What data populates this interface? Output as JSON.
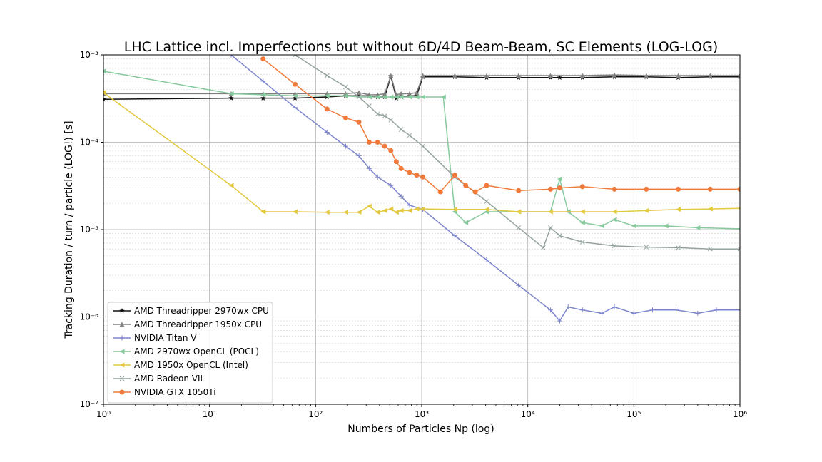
{
  "chart_data": {
    "type": "line",
    "title": "LHC Lattice incl. Imperfections but without 6D/4D Beam-Beam, SC Elements (LOG-LOG)",
    "xlabel": "Numbers of Particles Np (log)",
    "ylabel": "Tracking Duration / turn / particle (LOG!) [s]",
    "xscale": "log",
    "yscale": "log",
    "xlim": [
      1,
      1000000
    ],
    "ylim": [
      1e-07,
      0.001
    ],
    "x_ticks": [
      {
        "value": 1,
        "label": "10⁰"
      },
      {
        "value": 10,
        "label": "10¹"
      },
      {
        "value": 100,
        "label": "10²"
      },
      {
        "value": 1000,
        "label": "10³"
      },
      {
        "value": 10000,
        "label": "10⁴"
      },
      {
        "value": 100000,
        "label": "10⁵"
      },
      {
        "value": 1000000,
        "label": "10⁶"
      }
    ],
    "y_ticks": [
      {
        "value": 1e-07,
        "label": "10⁻⁷"
      },
      {
        "value": 1e-06,
        "label": "10⁻⁶"
      },
      {
        "value": 1e-05,
        "label": "10⁻⁵"
      },
      {
        "value": 0.0001,
        "label": "10⁻⁴"
      },
      {
        "value": 0.001,
        "label": "10⁻³"
      }
    ],
    "grid": true,
    "legend_position": "lower-left",
    "series": [
      {
        "name": "AMD Threadripper 2970wx CPU",
        "color": "#111111",
        "marker": "star",
        "x": [
          1,
          16,
          32,
          64,
          128,
          192,
          256,
          320,
          384,
          448,
          512,
          576,
          640,
          768,
          896,
          1024,
          2048,
          4096,
          8192,
          16384,
          20000,
          32768,
          65536,
          131072,
          262144,
          524288,
          1000000
        ],
        "y": [
          0.00031,
          0.00032,
          0.00032,
          0.00032,
          0.00033,
          0.00034,
          0.00034,
          0.00034,
          0.00033,
          0.00033,
          0.00057,
          0.00032,
          0.00033,
          0.00034,
          0.00034,
          0.00056,
          0.00056,
          0.00055,
          0.00055,
          0.00055,
          0.00055,
          0.00055,
          0.00056,
          0.00056,
          0.00055,
          0.00056,
          0.00056
        ]
      },
      {
        "name": "AMD Threadripper 1950x CPU",
        "color": "#808080",
        "marker": "triangle-up",
        "x": [
          1,
          16,
          32,
          64,
          128,
          192,
          256,
          320,
          384,
          448,
          512,
          576,
          640,
          768,
          896,
          1024,
          2048,
          4096,
          8192,
          16384,
          32768,
          65536,
          131072,
          262144,
          524288,
          1000000
        ],
        "y": [
          0.00036,
          0.00036,
          0.00036,
          0.00036,
          0.00036,
          0.00036,
          0.00037,
          0.00035,
          0.00035,
          0.00036,
          0.00058,
          0.00035,
          0.00036,
          0.00036,
          0.00037,
          0.00058,
          0.00058,
          0.00058,
          0.00058,
          0.00058,
          0.00058,
          0.00059,
          0.00058,
          0.00058,
          0.00058,
          0.00058
        ]
      },
      {
        "name": "NVIDIA Titan V",
        "color": "#7d85cc",
        "marker": "plus",
        "x": [
          16,
          32,
          64,
          128,
          192,
          256,
          320,
          384,
          512,
          640,
          768,
          1024,
          2048,
          4096,
          8192,
          16384,
          20000,
          24000,
          32768,
          50000,
          65536,
          100000,
          150000,
          250000,
          400000,
          600000,
          1000000
        ],
        "y": [
          0.001,
          0.0005,
          0.00025,
          0.00013,
          9e-05,
          7e-05,
          5e-05,
          4e-05,
          3.2e-05,
          2.4e-05,
          1.9e-05,
          1.7e-05,
          8.5e-06,
          4.5e-06,
          2.3e-06,
          1.2e-06,
          9e-07,
          1.3e-06,
          1.2e-06,
          1.1e-06,
          1.3e-06,
          1.1e-06,
          1.2e-06,
          1.2e-06,
          1.1e-06,
          1.2e-06,
          1.2e-06
        ]
      },
      {
        "name": "AMD 2970wx OpenCL (POCL)",
        "color": "#86c99d",
        "marker": "triangle-left",
        "x": [
          1,
          16,
          32,
          64,
          128,
          192,
          256,
          320,
          384,
          448,
          512,
          576,
          640,
          768,
          896,
          1024,
          1600,
          2048,
          2600,
          4096,
          8192,
          16384,
          20000,
          24000,
          32768,
          50000,
          65536,
          100000,
          200000,
          400000,
          1000000
        ],
        "y": [
          0.00065,
          0.00036,
          0.00035,
          0.00034,
          0.00034,
          0.00034,
          0.00033,
          0.00033,
          0.00033,
          0.00033,
          0.00033,
          0.00033,
          0.00033,
          0.00033,
          0.00033,
          0.00033,
          0.00033,
          1.6e-05,
          1.2e-05,
          1.6e-05,
          1.6e-05,
          1.6e-05,
          3.8e-05,
          1.6e-05,
          1.2e-05,
          1.1e-05,
          1.3e-05,
          1.1e-05,
          1.1e-05,
          1.05e-05,
          1.02e-05
        ]
      },
      {
        "name": "AMD 1950x OpenCL (Intel)",
        "color": "#e3c940",
        "marker": "triangle-left",
        "x": [
          1,
          16,
          32,
          64,
          128,
          192,
          256,
          320,
          384,
          448,
          512,
          576,
          640,
          768,
          896,
          1024,
          2048,
          4096,
          8192,
          16384,
          32768,
          65536,
          131072,
          262144,
          524288,
          1000000
        ],
        "y": [
          0.00037,
          3.2e-05,
          1.6e-05,
          1.6e-05,
          1.58e-05,
          1.58e-05,
          1.58e-05,
          1.85e-05,
          1.58e-05,
          1.65e-05,
          1.72e-05,
          1.58e-05,
          1.65e-05,
          1.65e-05,
          1.72e-05,
          1.72e-05,
          1.7e-05,
          1.7e-05,
          1.6e-05,
          1.6e-05,
          1.6e-05,
          1.6e-05,
          1.65e-05,
          1.7e-05,
          1.72e-05,
          1.75e-05
        ]
      },
      {
        "name": "AMD Radeon VII",
        "color": "#95a3a0",
        "marker": "x",
        "x": [
          64,
          128,
          192,
          256,
          320,
          384,
          448,
          512,
          640,
          768,
          1024,
          2048,
          4096,
          8192,
          14000,
          16384,
          20000,
          32768,
          65536,
          131072,
          262144,
          524288,
          1000000
        ],
        "y": [
          0.001,
          0.00058,
          0.00043,
          0.00033,
          0.00026,
          0.00021,
          0.0002,
          0.00018,
          0.00014,
          0.00012,
          9e-05,
          4e-05,
          2.1e-05,
          1.05e-05,
          6.2e-06,
          1.05e-05,
          8.5e-06,
          7.2e-06,
          6.5e-06,
          6.3e-06,
          6.2e-06,
          6e-06,
          6e-06
        ]
      },
      {
        "name": "NVIDIA GTX 1050Ti",
        "color": "#ef7a3c",
        "marker": "circle",
        "x": [
          32,
          64,
          128,
          192,
          256,
          320,
          384,
          448,
          512,
          576,
          640,
          768,
          896,
          1024,
          1500,
          2048,
          2600,
          3200,
          4096,
          8192,
          16384,
          20000,
          32768,
          65536,
          131072,
          262144,
          524288,
          1000000
        ],
        "y": [
          0.0009,
          0.00046,
          0.00024,
          0.00019,
          0.00017,
          0.0001,
          0.0001,
          9e-05,
          8e-05,
          6e-05,
          5e-05,
          4.5e-05,
          4.2e-05,
          4e-05,
          2.7e-05,
          4.2e-05,
          3.2e-05,
          2.7e-05,
          3.2e-05,
          2.8e-05,
          2.9e-05,
          3e-05,
          3.1e-05,
          2.9e-05,
          2.9e-05,
          2.9e-05,
          2.9e-05,
          2.9e-05
        ]
      }
    ]
  }
}
